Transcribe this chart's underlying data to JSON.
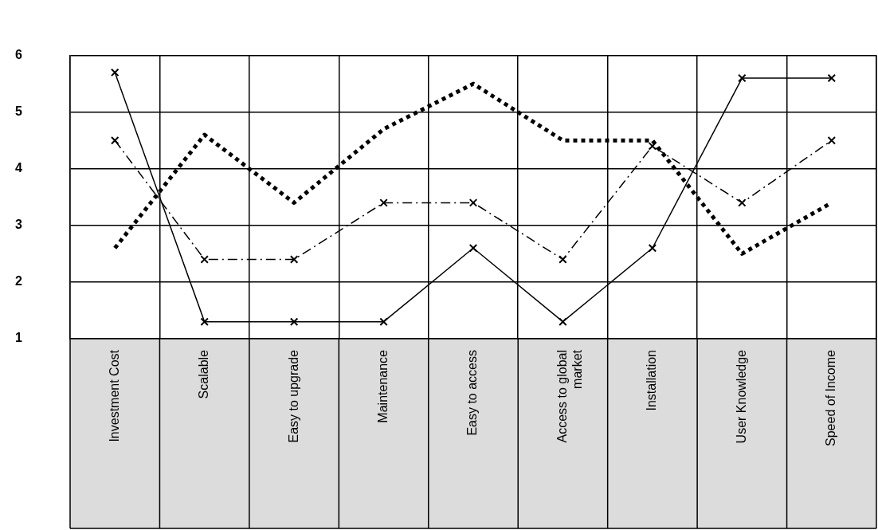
{
  "chart_data": {
    "type": "line",
    "categories": [
      "Investment Cost",
      "Scalable",
      "Easy to upgrade",
      "Maintenance",
      "Easy to access",
      "Access to global market",
      "Installation",
      "User Knowledge",
      "Speed of Income"
    ],
    "series": [
      {
        "color": "#000000",
        "line_style": "solid",
        "marker": "cross",
        "values": [
          5.7,
          1.3,
          1.3,
          1.3,
          2.6,
          1.3,
          2.6,
          5.6,
          5.6
        ]
      },
      {
        "color": "#000000",
        "line_style": "dashed",
        "marker": "cross",
        "values": [
          4.5,
          2.4,
          2.4,
          3.4,
          3.4,
          2.4,
          4.4,
          3.4,
          4.5
        ]
      },
      {
        "color": "#000000",
        "line_style": "dotted",
        "marker": "none",
        "values": [
          2.6,
          4.6,
          3.4,
          4.7,
          5.5,
          4.5,
          4.5,
          2.5,
          3.4
        ]
      }
    ],
    "ylim": [
      1,
      6
    ],
    "yticks": [
      1,
      2,
      3,
      4,
      5,
      6
    ],
    "grid": true
  }
}
